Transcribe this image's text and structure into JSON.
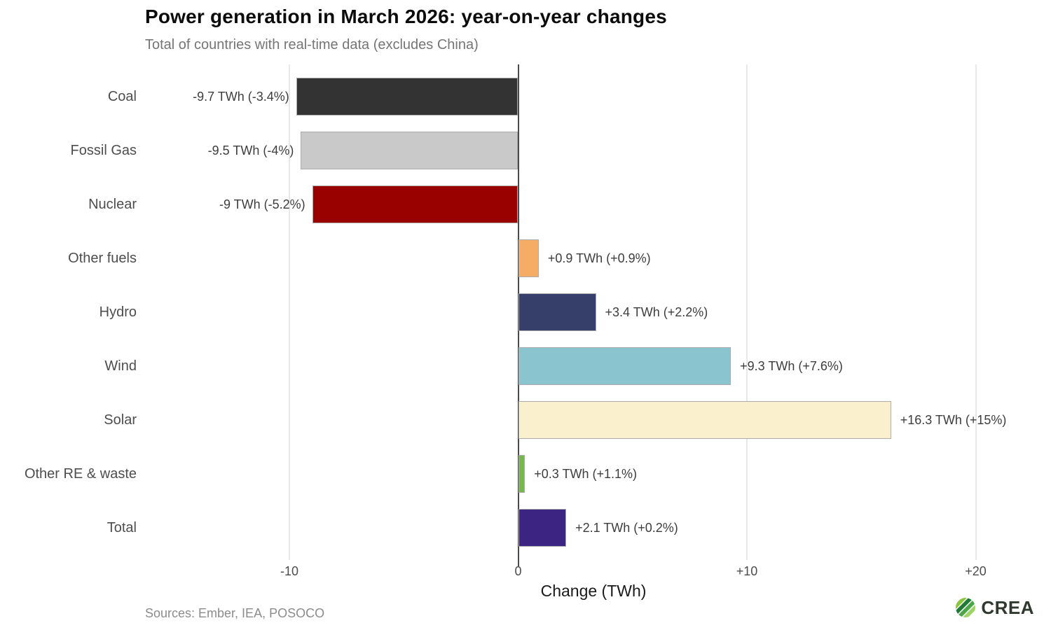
{
  "chart_data": {
    "type": "bar",
    "orientation": "horizontal",
    "title": "Power generation in March 2026: year-on-year changes",
    "subtitle": "Total of countries with real-time data (excludes China)",
    "xlabel": "Change (TWh)",
    "xlim": [
      -16.3,
      23
    ],
    "grid": "vertical-major-only",
    "x_ticks": [
      {
        "label": "-10",
        "value": -10
      },
      {
        "label": "0",
        "value": 0
      },
      {
        "label": "+10",
        "value": 10
      },
      {
        "label": "+20",
        "value": 20
      }
    ],
    "categories": [
      "Coal",
      "Fossil Gas",
      "Nuclear",
      "Other fuels",
      "Hydro",
      "Wind",
      "Solar",
      "Other RE & waste",
      "Total"
    ],
    "values": [
      -9.7,
      -9.5,
      -9,
      0.9,
      3.4,
      9.3,
      16.3,
      0.3,
      2.1
    ],
    "bar_labels": [
      "-9.7 TWh (-3.4%)",
      "-9.5 TWh (-4%)",
      "-9 TWh (-5.2%)",
      "+0.9 TWh (+0.9%)",
      "+3.4 TWh (+2.2%)",
      "+9.3 TWh (+7.6%)",
      "+16.3 TWh (+15%)",
      "+0.3 TWh (+1.1%)",
      "+2.1 TWh (+0.2%)"
    ],
    "bar_colors": [
      "#333333",
      "#c9c9c9",
      "#990000",
      "#f5ad65",
      "#353f6a",
      "#8ac4cf",
      "#faf0cd",
      "#76b84f",
      "#3c2483"
    ],
    "bar_border_color": "#ababab",
    "zero_line_color": "#4a4a4a",
    "gridline_color": "#e8e8e8"
  },
  "footer": {
    "source": "Sources: Ember, IEA, POSOCO",
    "logo_text": "CREA",
    "logo_colors": [
      "#8bc53f",
      "#1e7a34",
      "#4ca546",
      "#9ed36a"
    ]
  }
}
